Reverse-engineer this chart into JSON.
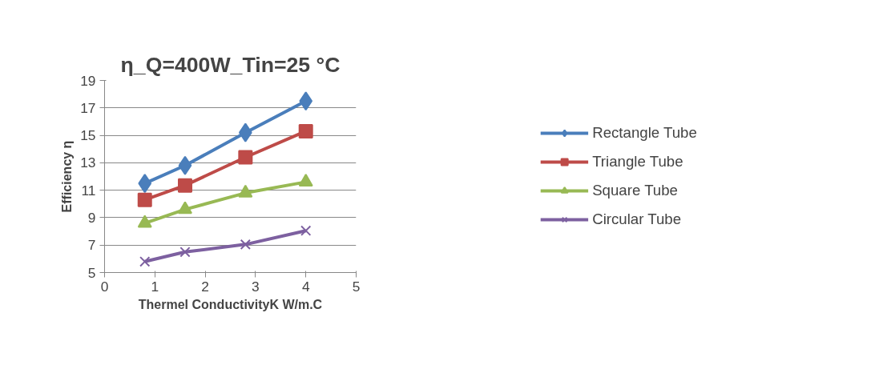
{
  "chart_data": {
    "type": "line",
    "title": "η_Q=400W_Tin=25 °C",
    "xlabel": "Thermel ConductivityK W/m.C",
    "ylabel": "Efficiency η",
    "x": [
      0.8,
      1.6,
      2.8,
      4.0
    ],
    "series": [
      {
        "name": "Rectangle Tube",
        "color": "#4a7ebb",
        "marker": "diamond",
        "values": [
          11.5,
          12.8,
          15.2,
          17.5
        ]
      },
      {
        "name": "Triangle Tube",
        "color": "#be4b48",
        "marker": "square",
        "values": [
          10.3,
          11.35,
          13.4,
          15.3
        ]
      },
      {
        "name": "Square Tube",
        "color": "#98b954",
        "marker": "triangle",
        "values": [
          8.6,
          9.6,
          10.8,
          11.6
        ]
      },
      {
        "name": "Circular Tube",
        "color": "#7d60a0",
        "marker": "cross",
        "values": [
          5.8,
          6.5,
          7.05,
          8.05
        ]
      }
    ],
    "xlim": [
      0,
      5
    ],
    "xticks": [
      0,
      1,
      2,
      3,
      4,
      5
    ],
    "ylim": [
      5,
      19
    ],
    "yticks": [
      5,
      7,
      9,
      11,
      13,
      15,
      17,
      19
    ],
    "grid": "y",
    "legend": "right",
    "line_style": "solid"
  }
}
